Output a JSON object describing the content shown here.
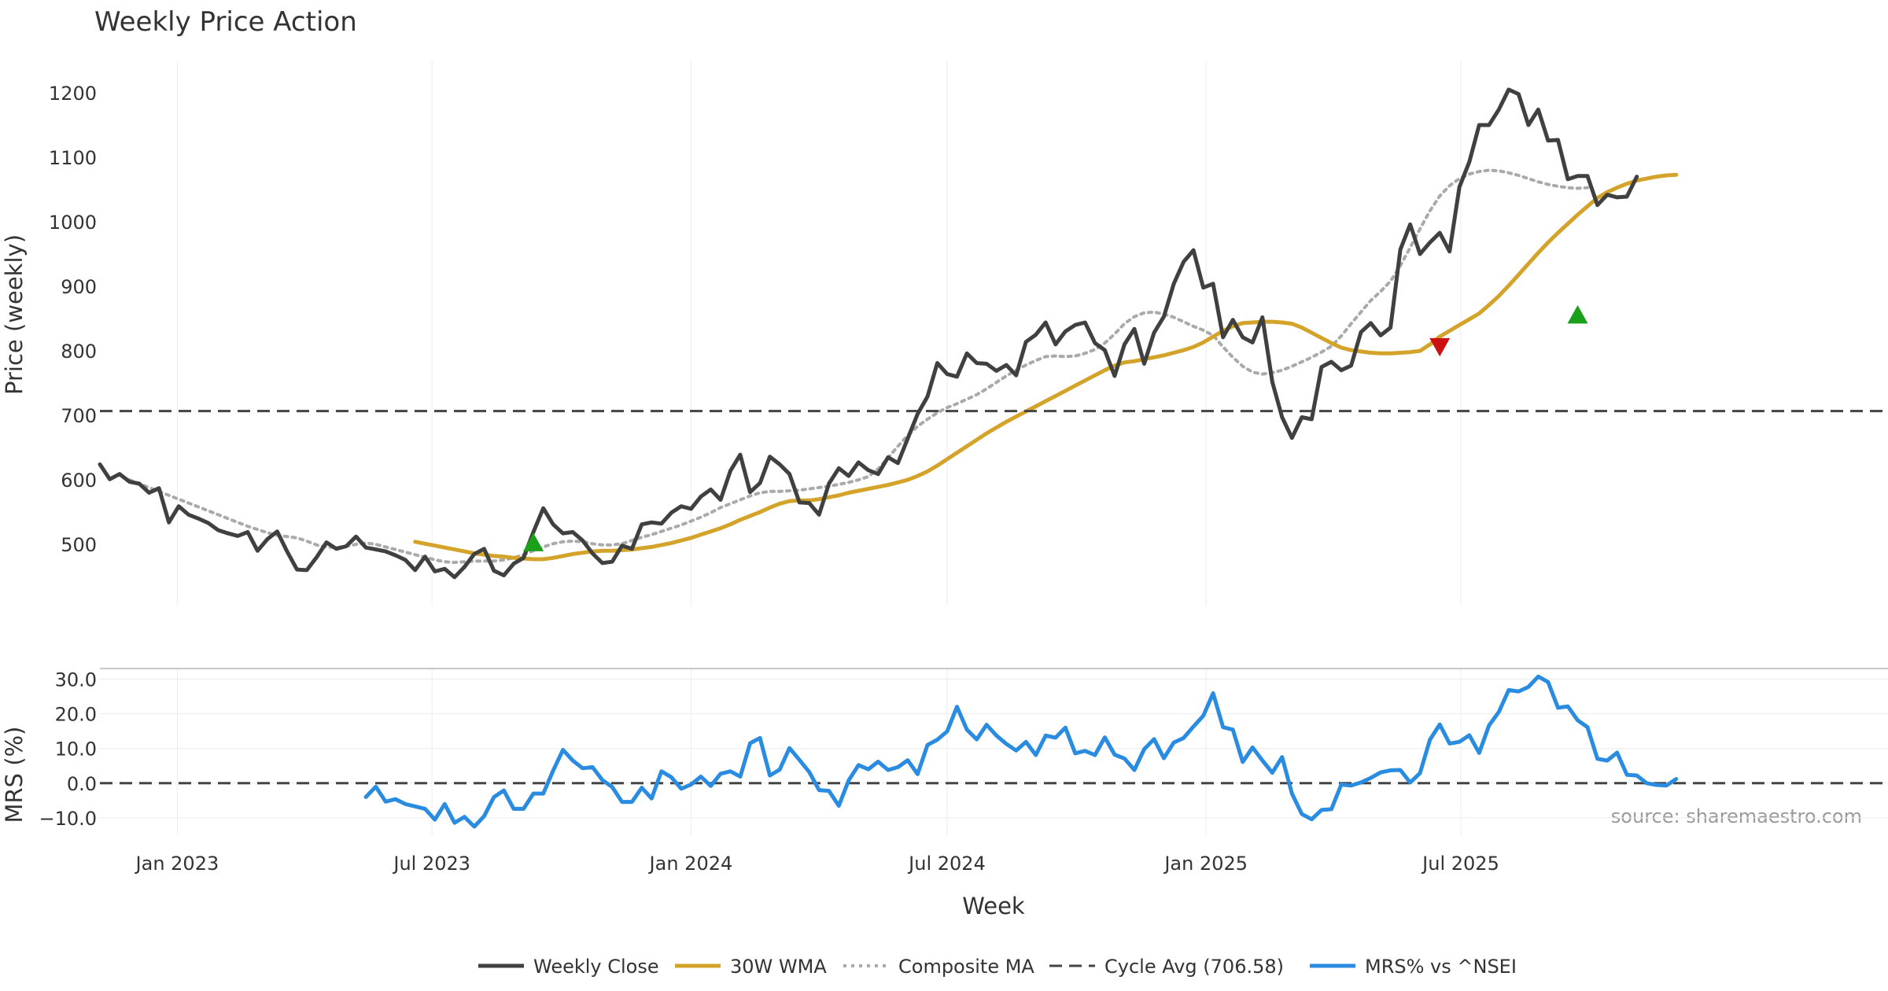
{
  "chart_data": {
    "type": "line",
    "title": "Weekly Price Action",
    "xlabel": "Week",
    "source_note": "source: sharemaestro.com",
    "x_ticks": [
      "Jan 2023",
      "Jul 2023",
      "Jan 2024",
      "Jul 2024",
      "Jan 2025",
      "Jul 2025"
    ],
    "x_start": "2022-11-07",
    "x_step_days": 7,
    "x_range_weeks": [
      0,
      181.5
    ],
    "price_panel": {
      "ylabel": "Price (weekly)",
      "ylim": [
        405,
        1250
      ],
      "y_ticks": [
        500,
        600,
        700,
        800,
        900,
        1000,
        1100,
        1200
      ],
      "series": [
        {
          "name": "Weekly Close",
          "color": "#404040",
          "style": "solid",
          "values": [
            624,
            601,
            609,
            597,
            594,
            580,
            587,
            534,
            559,
            546,
            540,
            533,
            522,
            517,
            513,
            519,
            490,
            508,
            520,
            489,
            461,
            460,
            480,
            503,
            493,
            497,
            512,
            495,
            492,
            489,
            483,
            476,
            460,
            481,
            458,
            462,
            449,
            465,
            485,
            493,
            459,
            452,
            470,
            479,
            519,
            556,
            531,
            517,
            519,
            506,
            486,
            471,
            473,
            498,
            493,
            531,
            534,
            532,
            549,
            559,
            555,
            574,
            585,
            569,
            614,
            639,
            581,
            595,
            636,
            624,
            609,
            565,
            564,
            546,
            594,
            618,
            606,
            627,
            615,
            609,
            635,
            626,
            664,
            702,
            729,
            781,
            764,
            760,
            796,
            781,
            780,
            769,
            778,
            762,
            814,
            825,
            844,
            810,
            830,
            840,
            844,
            812,
            801,
            761,
            810,
            834,
            780,
            828,
            853,
            904,
            938,
            956,
            898,
            904,
            821,
            848,
            821,
            813,
            852,
            752,
            697,
            665,
            697,
            694,
            775,
            783,
            770,
            777,
            829,
            843,
            824,
            836,
            957,
            996,
            950,
            968,
            983,
            954,
            1054,
            1093,
            1150,
            1150,
            1174,
            1205,
            1198,
            1150,
            1174,
            1126,
            1127,
            1066,
            1071,
            1071,
            1026,
            1042,
            1038,
            1039,
            1070
          ]
        },
        {
          "name": "30W WMA",
          "color": "#d4a32a",
          "style": "solid",
          "start_index": 32,
          "values": [
            504,
            501,
            498,
            495,
            492,
            489,
            486,
            484,
            482,
            481,
            479,
            478,
            477,
            477,
            479,
            482,
            485,
            487,
            489,
            490,
            490,
            491,
            492,
            494,
            496,
            499,
            502,
            506,
            510,
            515,
            520,
            525,
            531,
            538,
            544,
            550,
            557,
            563,
            567,
            568,
            568,
            570,
            573,
            576,
            580,
            583,
            586,
            589,
            592,
            596,
            600,
            606,
            613,
            622,
            632,
            642,
            652,
            662,
            672,
            681,
            690,
            698,
            706,
            714,
            722,
            730,
            738,
            746,
            754,
            762,
            770,
            777,
            782,
            784,
            787,
            790,
            793,
            797,
            801,
            806,
            813,
            822,
            831,
            838,
            843,
            844,
            845,
            845,
            844,
            842,
            836,
            828,
            820,
            812,
            805,
            801,
            799,
            797,
            796,
            796,
            797,
            798,
            800,
            810,
            822,
            831,
            840,
            849,
            858,
            871,
            885,
            901,
            918,
            935,
            952,
            968,
            983,
            997,
            1011,
            1024,
            1037,
            1046,
            1053,
            1059,
            1064,
            1067,
            1070,
            1072,
            1073
          ]
        },
        {
          "name": "Composite MA",
          "color": "#aaaaaa",
          "style": "dotted",
          "start_index": 3,
          "values": [
            600,
            594,
            588,
            582,
            576,
            570,
            564,
            558,
            552,
            546,
            540,
            534,
            528,
            523,
            518,
            514,
            512,
            510,
            505,
            499,
            496,
            495,
            497,
            500,
            502,
            500,
            496,
            492,
            488,
            484,
            480,
            476,
            473,
            472,
            473,
            474,
            474,
            474,
            476,
            479,
            484,
            490,
            496,
            501,
            504,
            505,
            504,
            501,
            499,
            499,
            501,
            506,
            511,
            515,
            520,
            525,
            530,
            536,
            542,
            549,
            557,
            563,
            569,
            575,
            580,
            582,
            582,
            583,
            584,
            586,
            588,
            590,
            593,
            596,
            600,
            605,
            617,
            634,
            652,
            669,
            683,
            694,
            704,
            712,
            718,
            725,
            732,
            741,
            751,
            761,
            770,
            778,
            785,
            791,
            792,
            791,
            792,
            796,
            802,
            812,
            826,
            842,
            853,
            859,
            860,
            857,
            852,
            845,
            838,
            832,
            824,
            806,
            790,
            776,
            767,
            764,
            766,
            770,
            776,
            783,
            790,
            798,
            807,
            823,
            842,
            860,
            878,
            892,
            908,
            932,
            960,
            989,
            1017,
            1040,
            1056,
            1067,
            1074,
            1078,
            1080,
            1079,
            1076,
            1072,
            1067,
            1062,
            1058,
            1055,
            1053,
            1052,
            1053
          ]
        },
        {
          "name": "Cycle Avg (706.58)",
          "color": "#444444",
          "style": "dashed",
          "value": 706.58
        }
      ],
      "markers": [
        {
          "type": "buy",
          "shape": "triangle-up",
          "color": "#1aa01a",
          "week": 44,
          "value": 502
        },
        {
          "type": "sell",
          "shape": "triangle-down",
          "color": "#cc1111",
          "week": 136,
          "value": 807
        },
        {
          "type": "buy",
          "shape": "triangle-up",
          "color": "#1aa01a",
          "week": 150,
          "value": 855
        }
      ]
    },
    "mrs_panel": {
      "ylabel": "MRS (%)",
      "ylim": [
        -15,
        33
      ],
      "y_ticks": [
        -10,
        0,
        10,
        20,
        30
      ],
      "y_tick_labels": [
        "−10.0",
        "0.0",
        "10.0",
        "20.0",
        "30.0"
      ],
      "zero_line": {
        "value": 0,
        "color": "#444444",
        "style": "dashed"
      },
      "series": [
        {
          "name": "MRS% vs ^NSEI",
          "color": "#2a8ce0",
          "style": "solid",
          "start_index": 27,
          "values": [
            -4.0,
            -1.0,
            -5.3,
            -4.6,
            -6.0,
            -6.7,
            -7.4,
            -10.5,
            -6.0,
            -11.4,
            -9.7,
            -12.5,
            -9.5,
            -4.0,
            -2.1,
            -7.4,
            -7.4,
            -3.0,
            -3.0,
            3.6,
            9.6,
            6.5,
            4.3,
            4.6,
            0.9,
            -1.1,
            -5.4,
            -5.4,
            -1.3,
            -4.4,
            3.4,
            1.7,
            -1.6,
            -0.4,
            1.9,
            -0.8,
            2.7,
            3.4,
            1.9,
            11.5,
            13.0,
            2.2,
            3.9,
            10.1,
            6.7,
            3.2,
            -2.0,
            -2.2,
            -6.5,
            0.8,
            5.2,
            4.0,
            6.2,
            3.8,
            4.6,
            6.6,
            2.6,
            11.0,
            12.5,
            14.9,
            22.0,
            15.4,
            12.6,
            16.8,
            13.7,
            11.3,
            9.4,
            11.9,
            8.1,
            13.7,
            13.1,
            16.0,
            8.6,
            9.3,
            8.1,
            13.2,
            8.2,
            7.1,
            3.8,
            9.8,
            12.7,
            7.2,
            11.7,
            13.0,
            16.3,
            19.4,
            25.9,
            16.1,
            15.4,
            6.1,
            10.3,
            6.5,
            3.0,
            7.5,
            -3.0,
            -8.9,
            -10.4,
            -7.7,
            -7.5,
            -0.4,
            -0.7,
            0.2,
            1.5,
            3.1,
            3.7,
            3.8,
            0.2,
            2.9,
            12.5,
            16.9,
            11.4,
            11.9,
            13.8,
            8.7,
            16.6,
            20.5,
            26.8,
            26.4,
            27.7,
            30.7,
            29.1,
            21.7,
            22.1,
            18.1,
            16.1,
            7.0,
            6.5,
            8.8,
            2.4,
            2.2,
            0.0,
            -0.5,
            -0.7,
            1.2
          ]
        }
      ]
    },
    "legend": {
      "placement": "bottom-center",
      "entries": [
        "Weekly Close",
        "30W WMA",
        "Composite MA",
        "Cycle Avg (706.58)",
        "MRS% vs ^NSEI"
      ]
    }
  }
}
